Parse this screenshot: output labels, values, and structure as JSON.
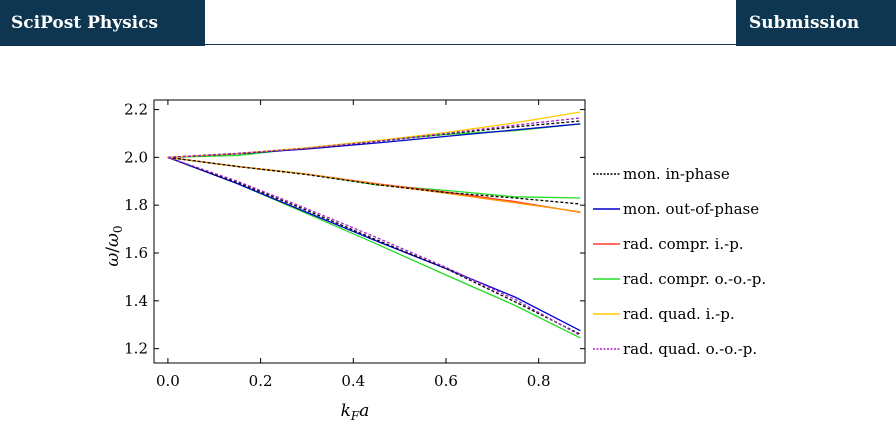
{
  "header": {
    "journal": "SciPost Physics",
    "badge": "Submission"
  },
  "chart_data": {
    "type": "line",
    "xlabel": "k_F a",
    "ylabel": "ω/ω_0",
    "xlim": [
      -0.03,
      0.9
    ],
    "ylim": [
      1.14,
      2.24
    ],
    "xticks": [
      "0.0",
      "0.2",
      "0.4",
      "0.6",
      "0.8"
    ],
    "yticks": [
      "1.2",
      "1.4",
      "1.6",
      "1.8",
      "2.0",
      "2.2"
    ],
    "grid": false,
    "legend_position": "right",
    "series": [
      {
        "name": "mon. in-phase",
        "color": "#000000",
        "dashed": true,
        "curves": [
          [
            [
              0,
              2.0
            ],
            [
              0.15,
              2.016
            ],
            [
              0.3,
              2.037
            ],
            [
              0.45,
              2.066
            ],
            [
              0.6,
              2.098
            ],
            [
              0.75,
              2.128
            ],
            [
              0.89,
              2.152
            ]
          ],
          [
            [
              0,
              2.0
            ],
            [
              0.15,
              1.962
            ],
            [
              0.3,
              1.928
            ],
            [
              0.45,
              1.886
            ],
            [
              0.6,
              1.853
            ],
            [
              0.75,
              1.83
            ],
            [
              0.89,
              1.805
            ]
          ],
          [
            [
              0,
              2.0
            ],
            [
              0.15,
              1.895
            ],
            [
              0.3,
              1.778
            ],
            [
              0.45,
              1.655
            ],
            [
              0.6,
              1.535
            ],
            [
              0.75,
              1.395
            ],
            [
              0.89,
              1.26
            ]
          ]
        ]
      },
      {
        "name": "mon. out-of-phase",
        "color": "#0000cc",
        "dashed": false,
        "curves": [
          [
            [
              0,
              2.0
            ],
            [
              0.15,
              2.015
            ],
            [
              0.3,
              2.035
            ],
            [
              0.45,
              2.06
            ],
            [
              0.6,
              2.088
            ],
            [
              0.75,
              2.115
            ],
            [
              0.89,
              2.14
            ]
          ],
          [
            [
              0,
              2.0
            ],
            [
              0.15,
              1.89
            ],
            [
              0.3,
              1.77
            ],
            [
              0.45,
              1.65
            ],
            [
              0.6,
              1.535
            ],
            [
              0.75,
              1.415
            ],
            [
              0.89,
              1.275
            ]
          ]
        ]
      },
      {
        "name": "rad. compr. i.-p.",
        "color": "#ff3b30",
        "dashed": false,
        "curves": [
          [
            [
              0,
              2.0
            ],
            [
              0.15,
              1.962
            ],
            [
              0.3,
              1.93
            ],
            [
              0.45,
              1.89
            ],
            [
              0.6,
              1.855
            ],
            [
              0.75,
              1.815
            ],
            [
              0.89,
              1.77
            ]
          ]
        ]
      },
      {
        "name": "rad. compr. o.-o.-p.",
        "color": "#22dd22",
        "dashed": false,
        "curves": [
          [
            [
              0,
              2.0
            ],
            [
              0.15,
              2.008
            ],
            [
              0.3,
              2.04
            ],
            [
              0.45,
              2.07
            ],
            [
              0.6,
              2.096
            ],
            [
              0.75,
              2.112
            ],
            [
              0.89,
              2.14
            ]
          ],
          [
            [
              0,
              2.0
            ],
            [
              0.15,
              1.962
            ],
            [
              0.3,
              1.93
            ],
            [
              0.45,
              1.885
            ],
            [
              0.6,
              1.862
            ],
            [
              0.75,
              1.835
            ],
            [
              0.89,
              1.83
            ]
          ],
          [
            [
              0,
              2.0
            ],
            [
              0.15,
              1.89
            ],
            [
              0.3,
              1.765
            ],
            [
              0.45,
              1.638
            ],
            [
              0.6,
              1.508
            ],
            [
              0.75,
              1.38
            ],
            [
              0.89,
              1.245
            ]
          ]
        ]
      },
      {
        "name": "rad. quad. i.-p.",
        "color": "#ffcc00",
        "dashed": false,
        "curves": [
          [
            [
              0,
              2.0
            ],
            [
              0.15,
              2.016
            ],
            [
              0.3,
              2.04
            ],
            [
              0.45,
              2.07
            ],
            [
              0.6,
              2.104
            ],
            [
              0.75,
              2.145
            ],
            [
              0.89,
              2.19
            ]
          ]
        ]
      },
      {
        "name": "rad. quad. o.-o.-p.",
        "color": "#aa22cc",
        "dashed": true,
        "curves": [
          [
            [
              0,
              2.0
            ],
            [
              0.15,
              2.017
            ],
            [
              0.3,
              2.038
            ],
            [
              0.45,
              2.067
            ],
            [
              0.6,
              2.1
            ],
            [
              0.75,
              2.135
            ],
            [
              0.89,
              2.165
            ]
          ],
          [
            [
              0,
              2.0
            ],
            [
              0.15,
              1.9
            ],
            [
              0.3,
              1.785
            ],
            [
              0.45,
              1.665
            ],
            [
              0.6,
              1.54
            ],
            [
              0.75,
              1.405
            ],
            [
              0.89,
              1.255
            ]
          ]
        ]
      }
    ],
    "extra_curves": [
      {
        "color": "#ff9900",
        "points": [
          [
            0,
            2.0
          ],
          [
            0.15,
            1.962
          ],
          [
            0.3,
            1.93
          ],
          [
            0.45,
            1.888
          ],
          [
            0.6,
            1.85
          ],
          [
            0.75,
            1.81
          ],
          [
            0.89,
            1.772
          ]
        ]
      }
    ]
  }
}
